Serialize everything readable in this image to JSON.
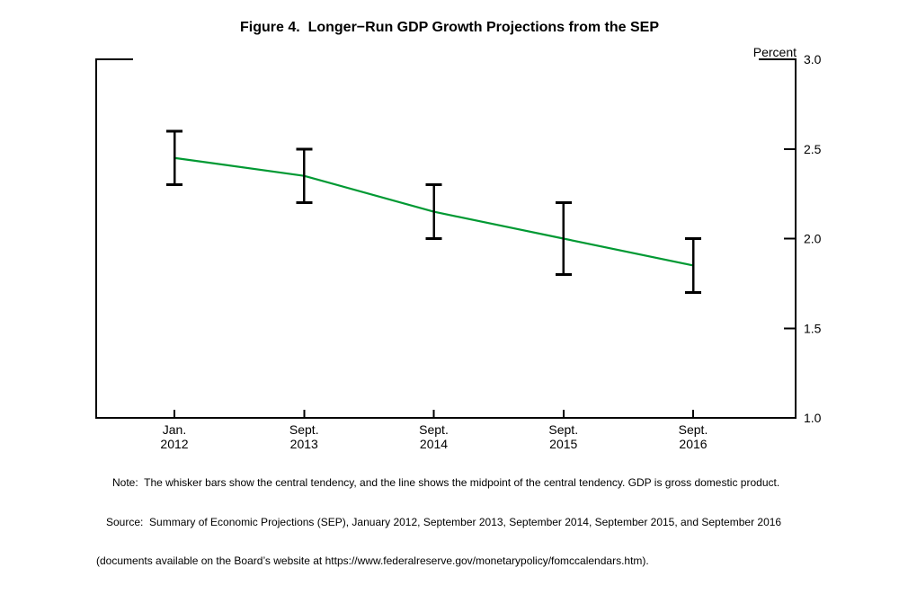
{
  "page": {
    "title": "Figure 4.  Longer−Run GDP Growth Projections from the SEP"
  },
  "notes": [
    "Note:  The whisker bars show the central tendency, and the line shows the midpoint of the central tendency. GDP is gross domestic product.",
    "Source:  Summary of Economic Projections (SEP), January 2012, September 2013, September 2014, September 2015, and September 2016",
    "(documents available on the Board’s website at https://www.federalreserve.gov/monetarypolicy/fomccalendars.htm)."
  ],
  "colors": {
    "midpoint_line": "#009933",
    "whisker": "#000000",
    "axis": "#000000"
  },
  "chart_data": {
    "type": "line",
    "title": "Figure 4.  Longer−Run GDP Growth Projections from the SEP",
    "xlabel": "",
    "ylabel": "Percent",
    "y_axis_side": "right",
    "grid": false,
    "legend": "none",
    "ylim": [
      1.0,
      3.0
    ],
    "yticks": [
      {
        "value": 3.0,
        "label": "3.0"
      },
      {
        "value": 2.5,
        "label": "2.5"
      },
      {
        "value": 2.0,
        "label": "2.0"
      },
      {
        "value": 1.5,
        "label": "1.5"
      },
      {
        "value": 1.0,
        "label": "1.0"
      }
    ],
    "categories": [
      {
        "line1": "Jan.",
        "line2": "2012"
      },
      {
        "line1": "Sept.",
        "line2": "2013"
      },
      {
        "line1": "Sept.",
        "line2": "2014"
      },
      {
        "line1": "Sept.",
        "line2": "2015"
      },
      {
        "line1": "Sept.",
        "line2": "2016"
      }
    ],
    "series": [
      {
        "name": "Midpoint of central tendency",
        "color": "#009933",
        "values": [
          2.45,
          2.35,
          2.15,
          2.0,
          1.85
        ]
      }
    ],
    "whiskers": {
      "name": "Central tendency range",
      "color": "#000000",
      "ranges": [
        {
          "low": 2.3,
          "high": 2.6
        },
        {
          "low": 2.2,
          "high": 2.5
        },
        {
          "low": 2.0,
          "high": 2.3
        },
        {
          "low": 1.8,
          "high": 2.2
        },
        {
          "low": 1.7,
          "high": 2.0
        }
      ]
    }
  }
}
